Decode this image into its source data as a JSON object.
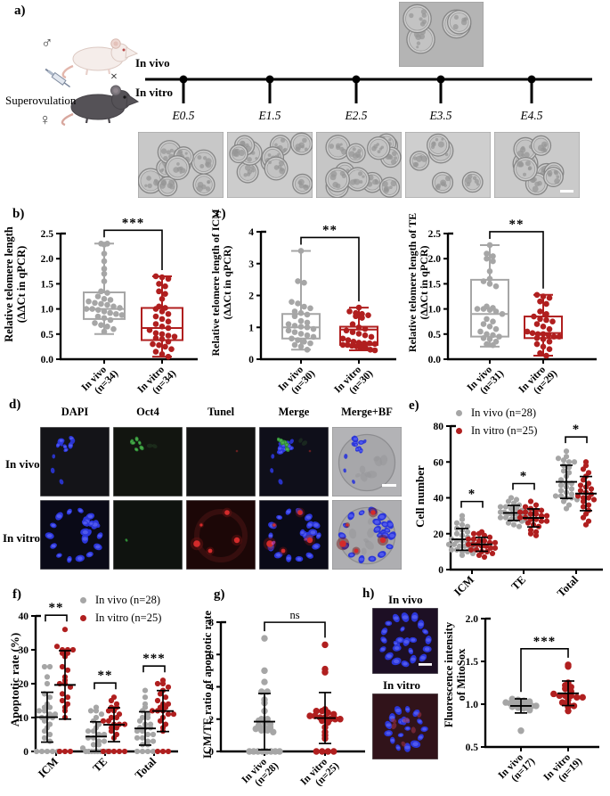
{
  "colors": {
    "in_vivo": "#a6a6a6",
    "in_vitro": "#b01f1f",
    "axis": "#000000",
    "nuclei_blue": "#2b36d9",
    "oct4_green": "#2f8b36",
    "tunel_red": "#c52323"
  },
  "panel_a": {
    "label": "a)",
    "male_symbol": "♂",
    "female_symbol": "♀",
    "cross": "×",
    "superovulation": "Superovulation",
    "in_vivo": "In vivo",
    "in_vitro": "In vitro",
    "timepoints": [
      "E0.5",
      "E1.5",
      "E2.5",
      "E3.5",
      "E4.5"
    ]
  },
  "panel_b": {
    "label": "b)"
  },
  "panel_c": {
    "label": "c)"
  },
  "panel_d": {
    "label": "d)",
    "columns": [
      "DAPI",
      "Oct4",
      "Tunel",
      "Merge",
      "Merge+BF"
    ],
    "rows": [
      "In vivo",
      "In vitro"
    ]
  },
  "panel_e": {
    "label": "e)",
    "legend": [
      "In vivo (n=28)",
      "In vitro (n=25)"
    ]
  },
  "panel_f": {
    "label": "f)",
    "legend": [
      "In vivo (n=28)",
      "In vitro (n=25)"
    ]
  },
  "panel_g": {
    "label": "g)"
  },
  "panel_h": {
    "label": "h)",
    "images": [
      "In vivo",
      "In vitro"
    ]
  },
  "chart_data": [
    {
      "id": "b",
      "type": "boxplot",
      "ylabel": [
        "Relative telomere length",
        "(ΔΔCt in qPCR)"
      ],
      "ylim": [
        0,
        2.5
      ],
      "yticks": [
        "0.0",
        "0.5",
        "1.0",
        "1.5",
        "2.0",
        "2.5"
      ],
      "sig": "***",
      "groups": [
        {
          "label": [
            "In vivo",
            "(n=34)"
          ],
          "color": "#a6a6a6",
          "box": {
            "lo": 0.5,
            "q1": 0.8,
            "med": 1.0,
            "q3": 1.33,
            "hi": 2.3
          },
          "points": [
            2.3,
            2.3,
            2.28,
            2.1,
            1.95,
            1.8,
            1.7,
            1.55,
            1.35,
            1.32,
            1.25,
            1.2,
            1.18,
            1.15,
            1.12,
            1.1,
            1.08,
            1.05,
            1.02,
            1.0,
            1.0,
            0.98,
            0.95,
            0.92,
            0.9,
            0.88,
            0.85,
            0.82,
            0.78,
            0.72,
            0.68,
            0.65,
            0.6,
            0.55
          ]
        },
        {
          "label": [
            "In vitro",
            "(n=34)"
          ],
          "color": "#b01f1f",
          "box": {
            "lo": 0.05,
            "q1": 0.38,
            "med": 0.62,
            "q3": 1.02,
            "hi": 1.65
          },
          "points": [
            1.65,
            1.63,
            1.6,
            1.5,
            1.45,
            1.35,
            1.3,
            1.2,
            1.05,
            1.02,
            1.0,
            0.95,
            0.9,
            0.85,
            0.8,
            0.75,
            0.7,
            0.65,
            0.62,
            0.58,
            0.52,
            0.5,
            0.47,
            0.45,
            0.42,
            0.4,
            0.35,
            0.3,
            0.28,
            0.25,
            0.2,
            0.15,
            0.1,
            0.05
          ]
        }
      ]
    },
    {
      "id": "c_icm",
      "type": "boxplot",
      "ylabel": [
        "Relative telomere length of ICM",
        "(ΔΔCt in qPCR)"
      ],
      "ylim": [
        0,
        4
      ],
      "yticks": [
        "0",
        "1",
        "2",
        "3",
        "4"
      ],
      "sig": "**",
      "groups": [
        {
          "label": [
            "In vivo",
            "(n=30)"
          ],
          "color": "#a6a6a6",
          "box": {
            "lo": 0.3,
            "q1": 0.65,
            "med": 1.0,
            "q3": 1.42,
            "hi": 3.4
          },
          "points": [
            3.4,
            2.45,
            2.4,
            1.8,
            1.75,
            1.65,
            1.6,
            1.5,
            1.45,
            1.4,
            1.35,
            1.2,
            1.15,
            1.1,
            1.05,
            1.02,
            1.0,
            0.95,
            0.9,
            0.85,
            0.8,
            0.75,
            0.7,
            0.65,
            0.6,
            0.55,
            0.5,
            0.45,
            0.4,
            0.3
          ]
        },
        {
          "label": [
            "In vitro",
            "(n=30)"
          ],
          "color": "#b01f1f",
          "box": {
            "lo": 0.28,
            "q1": 0.45,
            "med": 0.93,
            "q3": 1.02,
            "hi": 1.62
          },
          "points": [
            1.62,
            1.5,
            1.45,
            1.42,
            1.38,
            1.35,
            1.3,
            1.1,
            1.0,
            0.95,
            0.9,
            0.85,
            0.8,
            0.75,
            0.7,
            0.65,
            0.6,
            0.55,
            0.52,
            0.5,
            0.5,
            0.48,
            0.45,
            0.45,
            0.42,
            0.4,
            0.38,
            0.35,
            0.3,
            0.28
          ]
        }
      ]
    },
    {
      "id": "c_te",
      "type": "boxplot",
      "ylabel": [
        "Relative telomere length of TE",
        "(ΔΔCt in qPCR)"
      ],
      "ylim": [
        0,
        2.5
      ],
      "yticks": [
        "0.0",
        "0.5",
        "1.0",
        "1.5",
        "2.0",
        "2.5"
      ],
      "sig": "**",
      "groups": [
        {
          "label": [
            "In vivo",
            "(n=31)"
          ],
          "color": "#a6a6a6",
          "box": {
            "lo": 0.25,
            "q1": 0.45,
            "med": 0.9,
            "q3": 1.58,
            "hi": 2.27
          },
          "points": [
            2.27,
            2.1,
            2.05,
            2.0,
            1.95,
            1.75,
            1.6,
            1.55,
            1.5,
            1.45,
            1.05,
            1.02,
            1.0,
            1.0,
            0.98,
            0.95,
            0.9,
            0.8,
            0.75,
            0.7,
            0.65,
            0.6,
            0.55,
            0.5,
            0.48,
            0.45,
            0.42,
            0.4,
            0.35,
            0.3,
            0.28
          ]
        },
        {
          "label": [
            "In vitro",
            "(n=29)"
          ],
          "color": "#b01f1f",
          "box": {
            "lo": 0.07,
            "q1": 0.42,
            "med": 0.52,
            "q3": 0.85,
            "hi": 1.28
          },
          "points": [
            1.28,
            1.25,
            1.22,
            1.15,
            1.1,
            0.95,
            0.9,
            0.85,
            0.8,
            0.78,
            0.75,
            0.7,
            0.65,
            0.6,
            0.55,
            0.52,
            0.5,
            0.5,
            0.48,
            0.45,
            0.45,
            0.42,
            0.4,
            0.35,
            0.3,
            0.25,
            0.2,
            0.12,
            0.07
          ]
        }
      ]
    },
    {
      "id": "e",
      "type": "grouped-scatter",
      "ylabel": [
        "Cell number"
      ],
      "ylim": [
        0,
        80
      ],
      "yticks": [
        "0",
        "20",
        "40",
        "60",
        "80"
      ],
      "categories": [
        "ICM",
        "TE",
        "Total"
      ],
      "sig": [
        "*",
        "*",
        "*"
      ],
      "series": [
        {
          "name": "In vivo (n=28)",
          "key": "in_vivo",
          "color": "#a6a6a6"
        },
        {
          "name": "In vitro (n=25)",
          "key": "in_vitro",
          "color": "#b01f1f"
        }
      ],
      "data": {
        "ICM": {
          "in_vivo": [
            8,
            9,
            10,
            10,
            11,
            11,
            12,
            12,
            13,
            13,
            14,
            14,
            15,
            15,
            16,
            16,
            17,
            18,
            19,
            20,
            21,
            22,
            23,
            24,
            25,
            26,
            28,
            30
          ],
          "in_vitro": [
            7,
            8,
            9,
            10,
            10,
            11,
            11,
            12,
            12,
            13,
            13,
            14,
            14,
            14,
            15,
            15,
            16,
            16,
            17,
            17,
            18,
            19,
            20,
            20,
            21
          ]
        },
        "TE": {
          "in_vivo": [
            24,
            25,
            26,
            27,
            27,
            28,
            28,
            29,
            29,
            30,
            30,
            30,
            31,
            31,
            31,
            32,
            32,
            33,
            33,
            34,
            34,
            35,
            35,
            36,
            37,
            38,
            39,
            40
          ],
          "in_vitro": [
            19,
            20,
            21,
            22,
            24,
            25,
            26,
            27,
            27,
            28,
            28,
            29,
            29,
            30,
            30,
            31,
            31,
            32,
            32,
            33,
            33,
            34,
            35,
            36,
            38
          ]
        },
        "Total": {
          "in_vivo": [
            34,
            36,
            38,
            39,
            40,
            40,
            41,
            41,
            42,
            43,
            44,
            45,
            46,
            47,
            48,
            48,
            50,
            52,
            54,
            55,
            57,
            58,
            60,
            60,
            61,
            62,
            63,
            66
          ],
          "in_vitro": [
            25,
            27,
            29,
            31,
            33,
            35,
            36,
            38,
            39,
            40,
            40,
            41,
            42,
            43,
            44,
            45,
            46,
            47,
            48,
            50,
            52,
            54,
            56,
            58,
            60
          ]
        }
      }
    },
    {
      "id": "f",
      "type": "grouped-scatter",
      "ylabel": [
        "Apoptotic rate (%)"
      ],
      "ylim": [
        0,
        40
      ],
      "yticks": [
        "0",
        "10",
        "20",
        "30",
        "40"
      ],
      "categories": [
        "ICM",
        "TE",
        "Total"
      ],
      "sig": [
        "**",
        "**",
        "***"
      ],
      "series": [
        {
          "name": "In vivo (n=28)",
          "key": "in_vivo",
          "color": "#a6a6a6"
        },
        {
          "name": "In vitro (n=25)",
          "key": "in_vitro",
          "color": "#b01f1f"
        }
      ],
      "data": {
        "ICM": {
          "in_vivo": [
            0,
            0,
            0,
            0,
            0,
            3,
            4,
            5,
            6,
            7,
            8,
            9,
            10,
            10,
            10,
            11,
            11,
            12,
            12,
            13,
            13,
            14,
            16,
            17,
            20,
            22,
            25,
            25
          ],
          "in_vitro": [
            0,
            0,
            0,
            10,
            12,
            13,
            14,
            15,
            16,
            17,
            19,
            20,
            20,
            21,
            22,
            24,
            25,
            28,
            29,
            29,
            30,
            30,
            30,
            31,
            36
          ]
        },
        "TE": {
          "in_vivo": [
            0,
            0,
            0,
            0,
            0,
            0,
            0,
            0,
            0,
            1,
            2,
            2,
            3,
            3,
            4,
            4,
            5,
            5,
            6,
            6,
            7,
            8,
            9,
            10,
            11,
            12,
            12,
            13
          ],
          "in_vitro": [
            0,
            0,
            0,
            0,
            0,
            4,
            5,
            6,
            7,
            7,
            8,
            8,
            8,
            9,
            9,
            10,
            10,
            11,
            12,
            12,
            13,
            13,
            14,
            15,
            16
          ]
        },
        "Total": {
          "in_vivo": [
            0,
            0,
            0,
            0,
            2,
            2,
            3,
            3,
            4,
            4,
            5,
            5,
            6,
            6,
            7,
            7,
            7,
            8,
            8,
            9,
            10,
            10,
            11,
            12,
            13,
            14,
            16,
            18
          ],
          "in_vitro": [
            0,
            0,
            0,
            6,
            7,
            8,
            9,
            10,
            11,
            11,
            12,
            12,
            12,
            13,
            13,
            14,
            14,
            15,
            16,
            17,
            18,
            19,
            20,
            20,
            21
          ]
        }
      }
    },
    {
      "id": "g",
      "type": "scatter2",
      "ylabel": [
        "ICM/TE ratio of apoptotic rate"
      ],
      "ylim": [
        0,
        8
      ],
      "yticks": [
        "0",
        "2",
        "4",
        "6",
        "8"
      ],
      "sig": "ns",
      "groups": [
        {
          "label": [
            "In vivo",
            "(n=28)"
          ],
          "color": "#a6a6a6",
          "points": [
            0,
            0,
            0,
            0,
            0,
            0,
            0,
            0,
            1.2,
            1.3,
            1.3,
            1.4,
            1.5,
            1.5,
            1.6,
            1.7,
            1.8,
            1.9,
            2.0,
            2.0,
            2.5,
            3.0,
            3.2,
            3.7,
            3.7,
            4.3,
            5.0,
            7.0
          ]
        },
        {
          "label": [
            "In vitro",
            "(n=25)"
          ],
          "color": "#b01f1f",
          "points": [
            0,
            0,
            0,
            0,
            0.8,
            1.0,
            1.2,
            1.5,
            1.8,
            1.9,
            2.0,
            2.0,
            2.0,
            2.1,
            2.1,
            2.2,
            2.2,
            2.3,
            2.4,
            2.5,
            2.5,
            2.6,
            4.9,
            5.1,
            6.6
          ]
        }
      ]
    },
    {
      "id": "h",
      "type": "scatter2",
      "ylabel": [
        "Fluorescence intensity",
        "of MitoSox"
      ],
      "ylim": [
        0.5,
        2.0
      ],
      "yticks": [
        "0.5",
        "1.0",
        "1.5",
        "2.0"
      ],
      "sig": "***",
      "groups": [
        {
          "label": [
            "In vivo",
            "(n=17)"
          ],
          "color": "#a6a6a6",
          "points": [
            0.69,
            0.93,
            0.95,
            0.96,
            0.97,
            0.98,
            0.98,
            0.99,
            1.0,
            1.0,
            1.0,
            1.01,
            1.02,
            1.03,
            1.04,
            1.05,
            1.06
          ]
        },
        {
          "label": [
            "In vitro",
            "(n=19)"
          ],
          "color": "#b01f1f",
          "points": [
            0.92,
            0.97,
            0.98,
            1.0,
            1.02,
            1.05,
            1.08,
            1.08,
            1.1,
            1.1,
            1.1,
            1.12,
            1.15,
            1.18,
            1.2,
            1.22,
            1.25,
            1.44,
            1.46
          ]
        }
      ]
    }
  ]
}
